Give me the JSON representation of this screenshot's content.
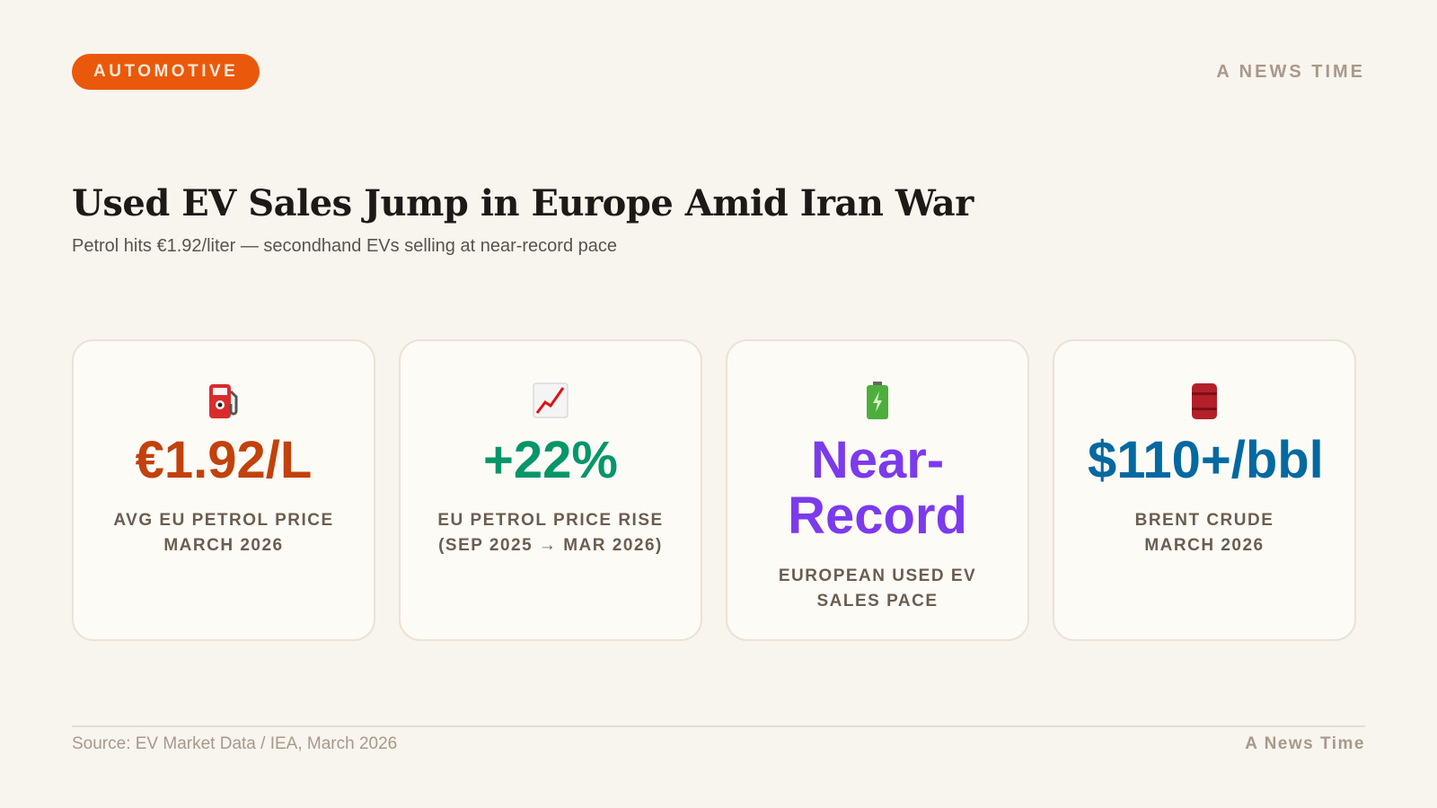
{
  "header": {
    "tag": "AUTOMOTIVE",
    "brand": "A NEWS TIME"
  },
  "title": "Used EV Sales Jump in Europe Amid Iran War",
  "subtitle": "Petrol hits €1.92/liter — secondhand EVs selling at near-record pace",
  "cards": [
    {
      "value": "€1.92/L",
      "color": "#c2410c",
      "label": [
        "AVG EU PETROL PRICE",
        "MARCH 2026"
      ]
    },
    {
      "value": "+22%",
      "color": "#059669",
      "label": [
        "EU PETROL PRICE RISE",
        "(SEP 2025 → MAR 2026)"
      ]
    },
    {
      "value": "Near-Record",
      "color": "#7c3aed",
      "label": [
        "EUROPEAN USED EV",
        "SALES PACE"
      ]
    },
    {
      "value": "$110+/bbl",
      "color": "#0369a1",
      "label": [
        "BRENT CRUDE",
        "MARCH 2026"
      ]
    }
  ],
  "footer": {
    "source": "Source: EV Market Data / IEA, March 2026",
    "brand": "A News Time"
  }
}
